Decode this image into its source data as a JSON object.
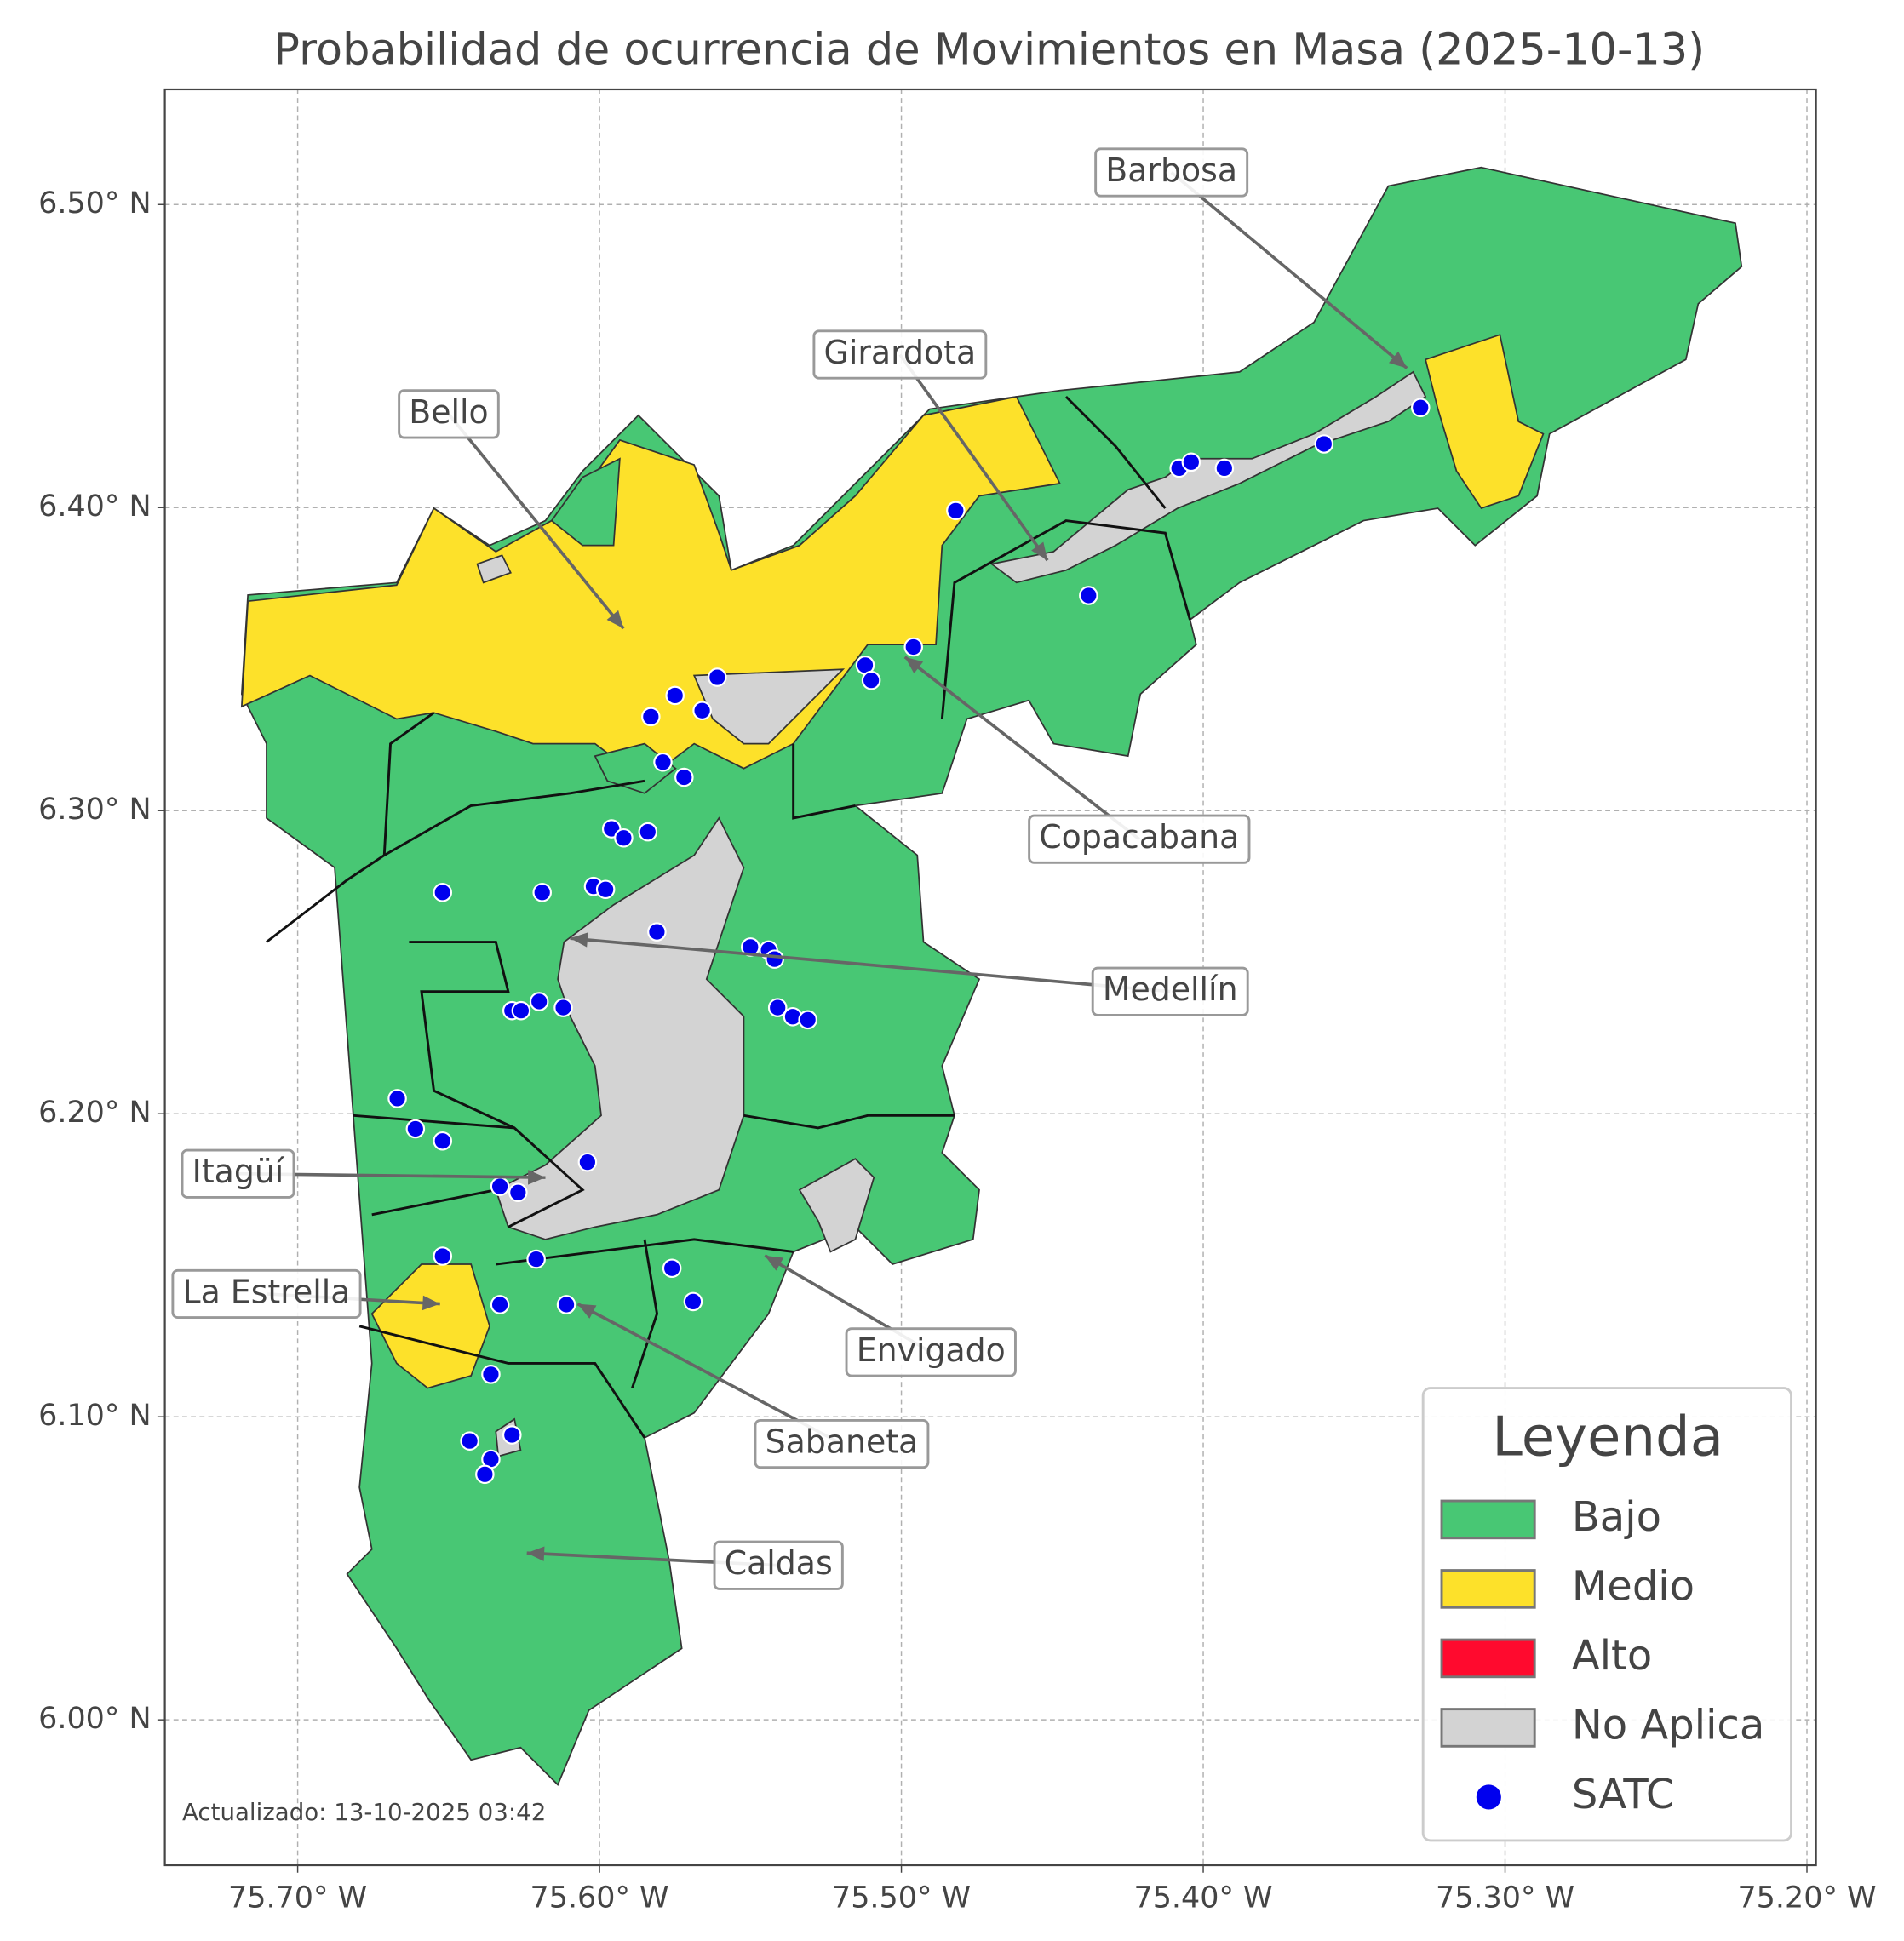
{
  "map": {
    "title": "Probabilidad de ocurrencia de Movimientos en Masa (2025-10-13)",
    "xlim": [
      -75.744,
      -75.197
    ],
    "ylim": [
      5.952,
      6.538
    ],
    "xticks": [
      {
        "value": -75.7,
        "label": "75.70° W"
      },
      {
        "value": -75.6,
        "label": "75.60° W"
      },
      {
        "value": -75.5,
        "label": "75.50° W"
      },
      {
        "value": -75.4,
        "label": "75.40° W"
      },
      {
        "value": -75.3,
        "label": "75.30° W"
      },
      {
        "value": -75.2,
        "label": "75.20° W"
      }
    ],
    "yticks": [
      {
        "value": 6.0,
        "label": "6.00° N"
      },
      {
        "value": 6.1,
        "label": "6.10° N"
      },
      {
        "value": 6.2,
        "label": "6.20° N"
      },
      {
        "value": 6.3,
        "label": "6.30° N"
      },
      {
        "value": 6.4,
        "label": "6.40° N"
      },
      {
        "value": 6.5,
        "label": "6.50° N"
      }
    ],
    "grid": true,
    "labels": [
      "Barbosa",
      "Girardota",
      "Bello",
      "Copacabana",
      "Medellín",
      "Itagüí",
      "La Estrella",
      "Envigado",
      "Sabaneta",
      "Caldas"
    ],
    "legend": {
      "title": "Leyenda",
      "items": [
        {
          "label": "Bajo",
          "color": "#48c774"
        },
        {
          "label": "Medio",
          "color": "#fde12a"
        },
        {
          "label": "Alto",
          "color": "#ff0a2e"
        },
        {
          "label": "No Aplica",
          "color": "#d3d3d3"
        },
        {
          "label": "SATC",
          "color": "#0000ee",
          "marker": "circle"
        }
      ]
    },
    "satc": {
      "lon": [
        -75.482,
        -75.438,
        -75.408,
        -75.404,
        -75.393,
        -75.36,
        -75.328,
        -75.496,
        -75.512,
        -75.51,
        -75.561,
        -75.575,
        -75.566,
        -75.583,
        -75.579,
        -75.572,
        -75.596,
        -75.584,
        -75.592,
        -75.652,
        -75.619,
        -75.602,
        -75.598,
        -75.581,
        -75.55,
        -75.544,
        -75.542,
        -75.541,
        -75.536,
        -75.531,
        -75.629,
        -75.626,
        -75.62,
        -75.612,
        -75.667,
        -75.661,
        -75.652,
        -75.604,
        -75.633,
        -75.627,
        -75.621,
        -75.652,
        -75.576,
        -75.569,
        -75.633,
        -75.611,
        -75.636,
        -75.643,
        -75.629,
        -75.636,
        -75.638
      ],
      "lat": [
        6.399,
        6.371,
        6.413,
        6.415,
        6.413,
        6.421,
        6.433,
        6.354,
        6.348,
        6.343,
        6.344,
        6.338,
        6.333,
        6.331,
        6.316,
        6.311,
        6.294,
        6.293,
        6.291,
        6.273,
        6.273,
        6.275,
        6.274,
        6.26,
        6.255,
        6.254,
        6.251,
        6.235,
        6.232,
        6.231,
        6.234,
        6.234,
        6.237,
        6.235,
        6.205,
        6.195,
        6.191,
        6.184,
        6.176,
        6.174,
        6.152,
        6.153,
        6.149,
        6.138,
        6.137,
        6.137,
        6.114,
        6.092,
        6.094,
        6.086,
        6.081
      ]
    },
    "footer": "Actualizado: 13-10-2025 03:42"
  }
}
